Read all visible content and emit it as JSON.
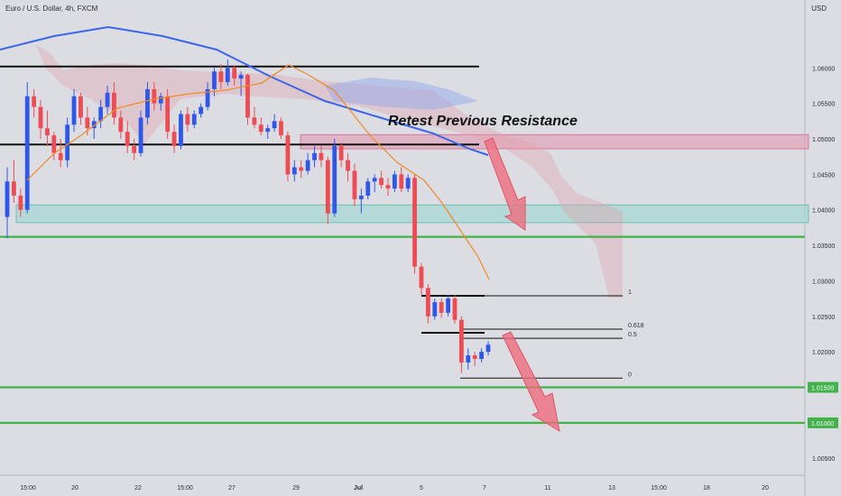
{
  "chart_data": {
    "type": "candlestick",
    "title": "Euro / U.S. Dollar, 4h, FXCM",
    "currency_label": "USD",
    "y_ticks": [
      "1.06000",
      "1.05500",
      "1.05000",
      "1.04500",
      "1.04000",
      "1.03500",
      "1.03000",
      "1.02500",
      "1.02000",
      "1.01500",
      "1.01000",
      "1.00500"
    ],
    "y_range": [
      1.0035,
      1.0655
    ],
    "x_ticks": [
      "15:00",
      "20",
      "22",
      "15:00",
      "27",
      "29",
      "Jul",
      "5",
      "7",
      "11",
      "13",
      "15:00",
      "18",
      "20"
    ],
    "annotation_text": "Retest Previous Resistance",
    "fib_labels": [
      "1",
      "0.618",
      "0.5",
      "0"
    ],
    "fib_levels": [
      1.0279,
      1.0232,
      1.0219,
      1.0163
    ],
    "price_labels": [
      {
        "text": "1.01500",
        "value": 1.015
      },
      {
        "text": "1.01000",
        "value": 1.01
      }
    ],
    "support_lines": [
      1.0362,
      1.015,
      1.01
    ],
    "resistance_lines": [
      1.0602,
      1.0492
    ],
    "zones": [
      {
        "name": "resistance zone",
        "from": 1.0486,
        "to": 1.0506,
        "color": "#e0a5bb"
      },
      {
        "name": "support zone",
        "from": 1.0382,
        "to": 1.0407,
        "color": "#a8d7d3"
      }
    ],
    "candles_ohlc": [
      [
        1.039,
        1.046,
        1.036,
        1.044
      ],
      [
        1.044,
        1.047,
        1.041,
        1.042
      ],
      [
        1.042,
        1.043,
        1.039,
        1.04
      ],
      [
        1.04,
        1.058,
        1.0395,
        1.056
      ],
      [
        1.056,
        1.057,
        1.053,
        1.0545
      ],
      [
        1.0545,
        1.0555,
        1.05,
        1.0515
      ],
      [
        1.0515,
        1.054,
        1.049,
        1.0505
      ],
      [
        1.0505,
        1.051,
        1.047,
        1.048
      ],
      [
        1.048,
        1.05,
        1.046,
        1.047
      ],
      [
        1.047,
        1.053,
        1.046,
        1.052
      ],
      [
        1.052,
        1.057,
        1.051,
        1.056
      ],
      [
        1.056,
        1.0565,
        1.052,
        1.053
      ],
      [
        1.053,
        1.0545,
        1.0505,
        1.0515
      ],
      [
        1.0515,
        1.053,
        1.05,
        1.0525
      ],
      [
        1.0525,
        1.0555,
        1.0515,
        1.0545
      ],
      [
        1.0545,
        1.0575,
        1.0535,
        1.0565
      ],
      [
        1.0565,
        1.058,
        1.052,
        1.053
      ],
      [
        1.053,
        1.054,
        1.05,
        1.051
      ],
      [
        1.051,
        1.0525,
        1.048,
        1.049
      ],
      [
        1.049,
        1.05,
        1.047,
        1.048
      ],
      [
        1.048,
        1.054,
        1.0475,
        1.053
      ],
      [
        1.053,
        1.058,
        1.052,
        1.057
      ],
      [
        1.057,
        1.058,
        1.054,
        1.055
      ],
      [
        1.055,
        1.0565,
        1.054,
        1.056
      ],
      [
        1.056,
        1.057,
        1.05,
        1.051
      ],
      [
        1.051,
        1.052,
        1.048,
        1.049
      ],
      [
        1.049,
        1.054,
        1.0485,
        1.0535
      ],
      [
        1.0535,
        1.0545,
        1.051,
        1.052
      ],
      [
        1.052,
        1.054,
        1.0515,
        1.0535
      ],
      [
        1.0535,
        1.055,
        1.053,
        1.0545
      ],
      [
        1.0545,
        1.058,
        1.054,
        1.057
      ],
      [
        1.057,
        1.06,
        1.056,
        1.0595
      ],
      [
        1.0595,
        1.0605,
        1.057,
        1.058
      ],
      [
        1.058,
        1.0612,
        1.0575,
        1.06
      ],
      [
        1.06,
        1.0604,
        1.0575,
        1.0585
      ],
      [
        1.0585,
        1.0595,
        1.056,
        1.059
      ],
      [
        1.059,
        1.0592,
        1.052,
        1.053
      ],
      [
        1.053,
        1.0545,
        1.0515,
        1.052
      ],
      [
        1.052,
        1.053,
        1.0505,
        1.051
      ],
      [
        1.051,
        1.052,
        1.05,
        1.0515
      ],
      [
        1.0515,
        1.0535,
        1.051,
        1.0525
      ],
      [
        1.0525,
        1.053,
        1.05,
        1.0505
      ],
      [
        1.0505,
        1.051,
        1.044,
        1.045
      ],
      [
        1.045,
        1.047,
        1.044,
        1.046
      ],
      [
        1.046,
        1.047,
        1.0445,
        1.0455
      ],
      [
        1.0455,
        1.048,
        1.045,
        1.047
      ],
      [
        1.047,
        1.049,
        1.046,
        1.048
      ],
      [
        1.048,
        1.049,
        1.046,
        1.047
      ],
      [
        1.047,
        1.0475,
        1.038,
        1.0395
      ],
      [
        1.0395,
        1.05,
        1.039,
        1.049
      ],
      [
        1.049,
        1.0495,
        1.046,
        1.047
      ],
      [
        1.047,
        1.048,
        1.044,
        1.0455
      ],
      [
        1.0455,
        1.0465,
        1.0405,
        1.0415
      ],
      [
        1.0415,
        1.043,
        1.0395,
        1.042
      ],
      [
        1.042,
        1.0445,
        1.0415,
        1.044
      ],
      [
        1.044,
        1.045,
        1.0425,
        1.0445
      ],
      [
        1.0445,
        1.0455,
        1.043,
        1.0435
      ],
      [
        1.0435,
        1.0445,
        1.042,
        1.043
      ],
      [
        1.043,
        1.0455,
        1.0425,
        1.045
      ],
      [
        1.045,
        1.046,
        1.0425,
        1.043
      ],
      [
        1.043,
        1.045,
        1.0425,
        1.0445
      ],
      [
        1.0445,
        1.045,
        1.031,
        1.032
      ],
      [
        1.032,
        1.0325,
        1.028,
        1.029
      ],
      [
        1.029,
        1.0295,
        1.024,
        1.025
      ],
      [
        1.025,
        1.0275,
        1.0245,
        1.027
      ],
      [
        1.027,
        1.0275,
        1.0248,
        1.0255
      ],
      [
        1.0255,
        1.028,
        1.025,
        1.0275
      ],
      [
        1.0275,
        1.028,
        1.024,
        1.0245
      ],
      [
        1.0245,
        1.025,
        1.017,
        1.0185
      ],
      [
        1.0185,
        1.0205,
        1.0175,
        1.0195
      ],
      [
        1.0195,
        1.02,
        1.018,
        1.019
      ],
      [
        1.019,
        1.0205,
        1.0185,
        1.02
      ],
      [
        1.02,
        1.0215,
        1.0195,
        1.021
      ]
    ]
  },
  "colors": {
    "up": "#2f57e8",
    "down": "#ee4b53",
    "ema_slow": "#3d66e6",
    "ema_fast": "#f08a24",
    "support": "#42b24a",
    "cloud": "#e59aa6",
    "arrow": "#ee6e7e"
  }
}
